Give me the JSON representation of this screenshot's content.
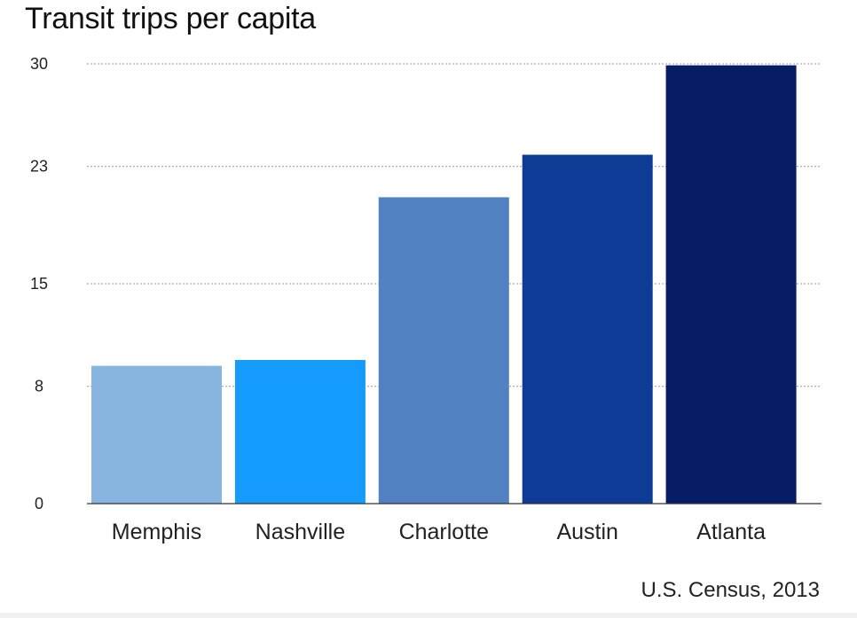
{
  "chart_data": {
    "type": "bar",
    "title": "Transit trips per capita",
    "source": "U.S. Census, 2013",
    "categories": [
      "Memphis",
      "Nashville",
      "Charlotte",
      "Austin",
      "Atlanta"
    ],
    "values": [
      9.4,
      9.8,
      20.9,
      23.8,
      29.9
    ],
    "bar_colors": [
      "#87b5e0",
      "#149bfc",
      "#5281c2",
      "#0d3b96",
      "#061c65"
    ],
    "yticks": [
      0,
      8,
      15,
      23,
      30
    ],
    "ylim": [
      0,
      30
    ],
    "grid": true,
    "grid_style": "dotted",
    "legend": false
  }
}
